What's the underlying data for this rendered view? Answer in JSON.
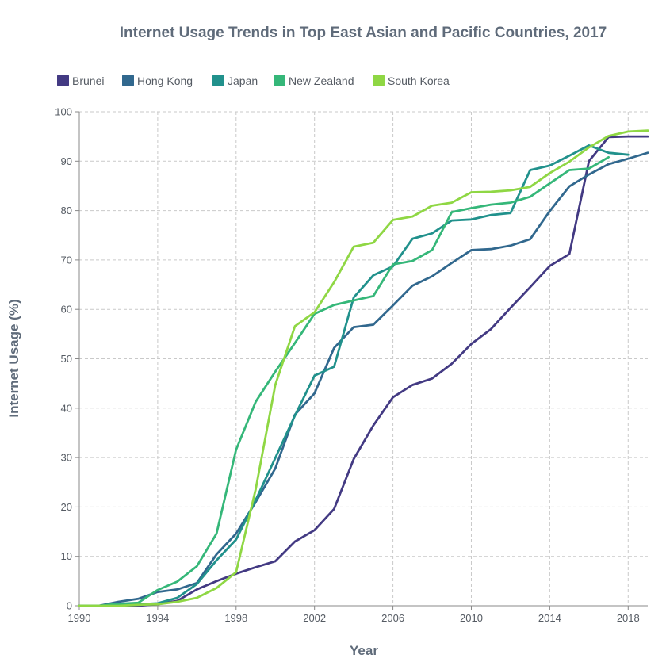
{
  "chart_data": {
    "type": "line",
    "title": "Internet Usage Trends in Top East Asian and Pacific Countries, 2017",
    "xlabel": "Year",
    "ylabel": "Internet Usage (%)",
    "xlim": [
      1990,
      2019
    ],
    "ylim": [
      0,
      100
    ],
    "x_ticks": [
      1990,
      1994,
      1998,
      2002,
      2006,
      2010,
      2014,
      2018
    ],
    "y_ticks": [
      0,
      10,
      20,
      30,
      40,
      50,
      60,
      70,
      80,
      90,
      100
    ],
    "grid": true,
    "legend_position": "top-left",
    "series": [
      {
        "name": "Brunei",
        "color": "#433a83",
        "x": [
          1990,
          1991,
          1992,
          1993,
          1994,
          1995,
          1996,
          1997,
          1998,
          1999,
          2000,
          2001,
          2002,
          2003,
          2004,
          2005,
          2006,
          2007,
          2008,
          2009,
          2010,
          2011,
          2012,
          2013,
          2014,
          2015,
          2016,
          2017,
          2018,
          2019
        ],
        "y": [
          0,
          0,
          0,
          0,
          0.3,
          1,
          3.3,
          5,
          6.5,
          7.8,
          9,
          13,
          15.3,
          19.6,
          29.7,
          36.5,
          42.2,
          44.7,
          46,
          49,
          53,
          56,
          60.3,
          64.5,
          68.8,
          71.2,
          90,
          94.9,
          95,
          95
        ]
      },
      {
        "name": "Hong Kong",
        "color": "#31688e",
        "x": [
          1990,
          1991,
          1992,
          1993,
          1994,
          1995,
          1996,
          1997,
          1998,
          1999,
          2000,
          2001,
          2002,
          2003,
          2004,
          2005,
          2006,
          2007,
          2008,
          2009,
          2010,
          2011,
          2012,
          2013,
          2014,
          2015,
          2016,
          2017,
          2018,
          2019
        ],
        "y": [
          0,
          0,
          0.8,
          1.4,
          2.8,
          3.3,
          4.6,
          10.4,
          14.6,
          21,
          27.8,
          38.7,
          43,
          52.2,
          56.4,
          56.9,
          60.8,
          64.8,
          66.7,
          69.4,
          72,
          72.2,
          72.9,
          74.2,
          79.9,
          84.9,
          87.3,
          89.4,
          90.5,
          91.7
        ]
      },
      {
        "name": "Japan",
        "color": "#21918c",
        "x": [
          1990,
          1991,
          1992,
          1993,
          1994,
          1995,
          1996,
          1997,
          1998,
          1999,
          2000,
          2001,
          2002,
          2003,
          2004,
          2005,
          2006,
          2007,
          2008,
          2009,
          2010,
          2011,
          2012,
          2013,
          2014,
          2015,
          2016,
          2017,
          2018
        ],
        "y": [
          0,
          0,
          0.1,
          0.3,
          0.5,
          1.6,
          4.4,
          9.2,
          13.4,
          21.4,
          29.9,
          38.5,
          46.6,
          48.4,
          62.4,
          66.9,
          68.7,
          74.3,
          75.4,
          78,
          78.2,
          79.1,
          79.5,
          88.2,
          89.1,
          91.1,
          93.2,
          91.7,
          91.3
        ]
      },
      {
        "name": "New Zealand",
        "color": "#35b779",
        "x": [
          1990,
          1991,
          1992,
          1993,
          1994,
          1995,
          1996,
          1997,
          1998,
          1999,
          2000,
          2001,
          2002,
          2003,
          2004,
          2005,
          2006,
          2007,
          2008,
          2009,
          2010,
          2011,
          2012,
          2013,
          2014,
          2015,
          2016,
          2017
        ],
        "y": [
          0,
          0,
          0.4,
          0.6,
          3.2,
          4.9,
          8,
          14.6,
          31.6,
          41.3,
          47.4,
          53.2,
          59.1,
          60.9,
          61.8,
          62.7,
          69.1,
          69.8,
          72,
          79.7,
          80.5,
          81.2,
          81.6,
          82.8,
          85.5,
          88.2,
          88.5,
          90.8
        ]
      },
      {
        "name": "South Korea",
        "color": "#8fd744",
        "x": [
          1990,
          1991,
          1992,
          1993,
          1994,
          1995,
          1996,
          1997,
          1998,
          1999,
          2000,
          2001,
          2002,
          2003,
          2004,
          2005,
          2006,
          2007,
          2008,
          2009,
          2010,
          2011,
          2012,
          2013,
          2014,
          2015,
          2016,
          2017,
          2018,
          2019
        ],
        "y": [
          0,
          0,
          0,
          0.2,
          0.3,
          0.8,
          1.6,
          3.6,
          6.8,
          23.6,
          44.7,
          56.6,
          59.4,
          65.5,
          72.7,
          73.5,
          78.1,
          78.8,
          81,
          81.6,
          83.7,
          83.8,
          84.1,
          84.8,
          87.6,
          89.9,
          92.8,
          95.1,
          96,
          96.2
        ]
      }
    ]
  }
}
